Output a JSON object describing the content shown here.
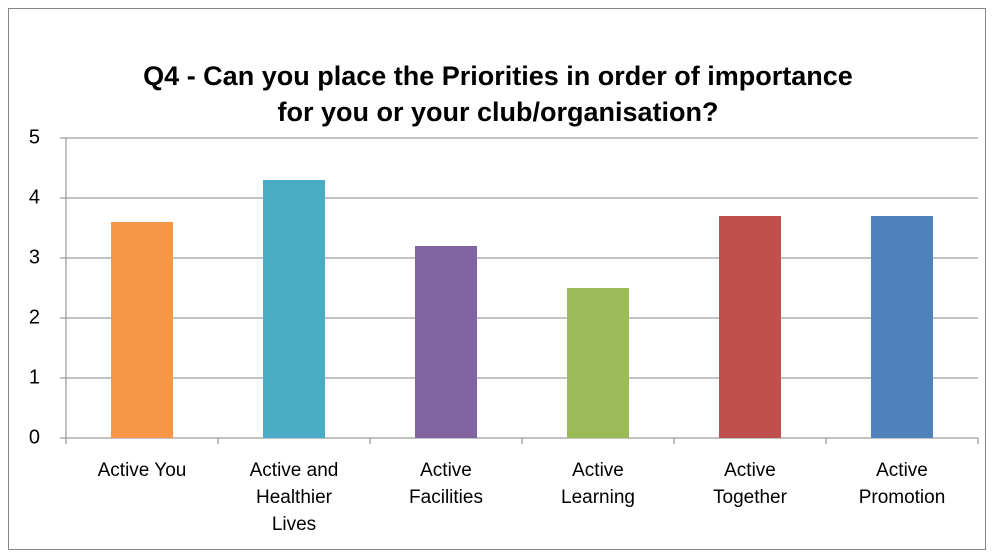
{
  "chart_data": {
    "type": "bar",
    "title": "Q4 - Can you place the Priorities in order of importance for you or your club/organisation?",
    "categories": [
      "Active You",
      "Active and Healthier Lives",
      "Active Facilities",
      "Active Learning",
      "Active Together",
      "Active Promotion"
    ],
    "values": [
      3.6,
      4.3,
      3.2,
      2.5,
      3.7,
      3.7
    ],
    "colors": [
      "#f79646",
      "#4bacc6",
      "#8064a2",
      "#9bbb59",
      "#c0504d",
      "#4f81bd"
    ],
    "ylim": [
      0,
      5
    ],
    "yticks": [
      0,
      1,
      2,
      3,
      4,
      5
    ],
    "grid": true
  }
}
